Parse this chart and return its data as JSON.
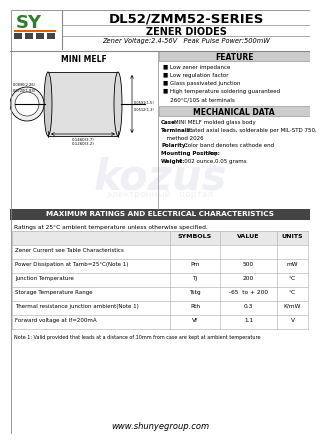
{
  "title": "DL52/ZMM52-SERIES",
  "subtitle": "ZENER DIODES",
  "subtitle2": "Zener Voltage:2.4-56V   Peak Pulse Power:500mW",
  "company_url": "www.shunyegroup.com",
  "feature_title": "FEATURE",
  "features": [
    "Low zener impedance",
    "Low regulation factor",
    "Glass passivated junction",
    "High temperature soldering guaranteed\n   260°C/10S at terminals"
  ],
  "mech_title": "MECHANICAL DATA",
  "mech_items": [
    {
      "key": "Case:",
      "val": "MINI MELF molded glass body"
    },
    {
      "key": "Terminals:",
      "val": "Plated axial leads, solderable per MIL-STD 750,\n  method 2026"
    },
    {
      "key": "Polarity:",
      "val": "Color band denotes cathode end"
    },
    {
      "key": "Mounting Position:",
      "val": "Any"
    },
    {
      "key": "Weight:",
      "val": "0.002 ounce,0.05 grams"
    }
  ],
  "package_label": "MINI MELF",
  "ratings_title": "MAXIMUM RATINGS AND ELECTRICAL CHARACTERISTICS",
  "ratings_subtitle": "Ratings at 25°C ambient temperature unless otherwise specified.",
  "table_headers": [
    "",
    "SYMBOLS",
    "VALUE",
    "UNITS"
  ],
  "table_rows": [
    [
      "Zener Current see Table Characteristics",
      "",
      "",
      ""
    ],
    [
      "Power Dissipation at Tamb=25°C(Note 1)",
      "Pm",
      "500",
      "mW"
    ],
    [
      "Junction Temperature",
      "Tj",
      "200",
      "°C"
    ],
    [
      "Storage Temperature Range",
      "Tstg",
      "-65  to + 200",
      "°C"
    ],
    [
      "Thermal resistance junction ambient(Note 1)",
      "Rth",
      "0.3",
      "K/mW"
    ],
    [
      "Forward voltage at If=200mA",
      "Vf",
      "1.1",
      "V"
    ]
  ],
  "note": "Note 1: Valid provided that leads at a distance of 10mm from case are kept at ambient temperature",
  "bg_color": "#ffffff",
  "logo_green": "#2e7d2e",
  "logo_orange": "#e06000",
  "watermark_color": "#8888bb"
}
